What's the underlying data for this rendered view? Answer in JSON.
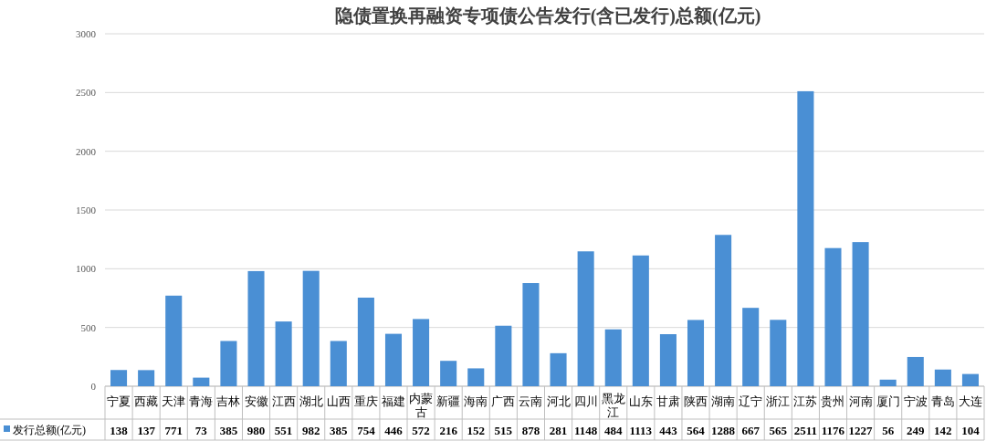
{
  "chart_data": {
    "type": "bar",
    "title": "隐债置换再融资专项债公告发行(含已发行)总额(亿元)",
    "categories": [
      "宁夏",
      "西藏",
      "天津",
      "青海",
      "吉林",
      "安徽",
      "江西",
      "湖北",
      "山西",
      "重庆",
      "福建",
      "内蒙古",
      "新疆",
      "海南",
      "广西",
      "云南",
      "河北",
      "四川",
      "黑龙江",
      "山东",
      "甘肃",
      "陕西",
      "湖南",
      "辽宁",
      "浙江",
      "江苏",
      "贵州",
      "河南",
      "厦门",
      "宁波",
      "青岛",
      "大连"
    ],
    "series": [
      {
        "name": "发行总额(亿元)",
        "color": "#4a8fd4",
        "values": [
          138,
          137,
          771,
          73,
          385,
          980,
          551,
          982,
          385,
          754,
          446,
          572,
          216,
          152,
          515,
          878,
          281,
          1148,
          484,
          1113,
          443,
          564,
          1288,
          667,
          565,
          2511,
          1176,
          1227,
          56,
          249,
          142,
          104
        ]
      }
    ],
    "ylim": [
      0,
      3000
    ],
    "yticks": [
      0,
      500,
      1000,
      1500,
      2000,
      2500,
      3000
    ],
    "grid": "y",
    "legend": "bottom",
    "data_labels": true
  }
}
